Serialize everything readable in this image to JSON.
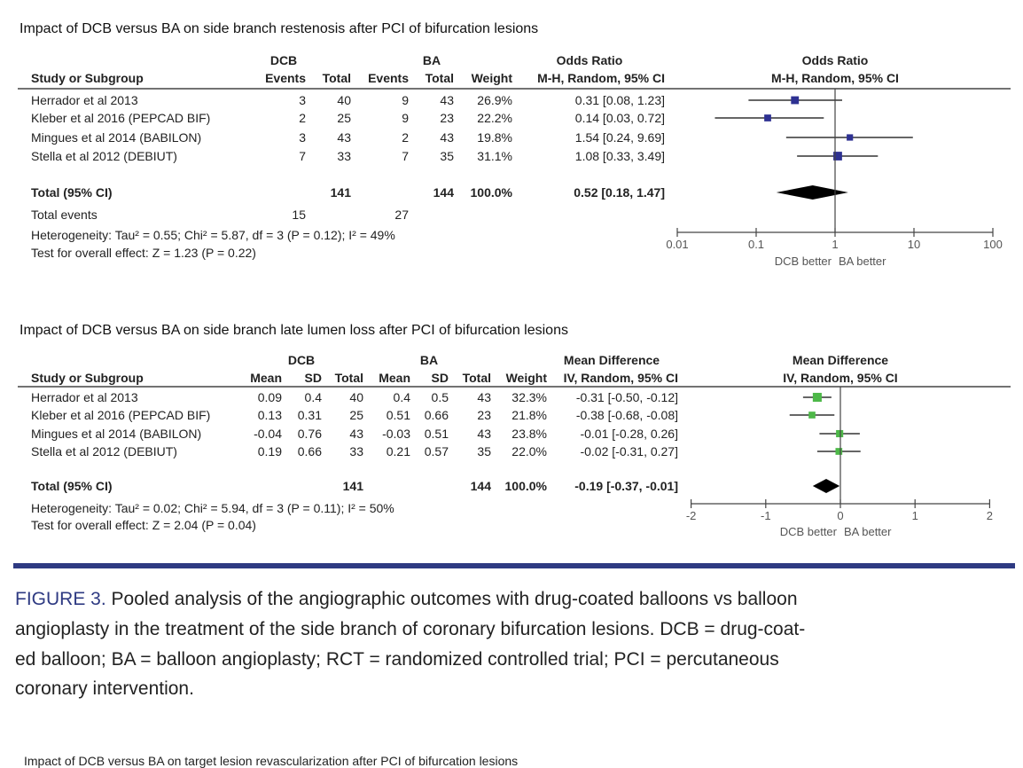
{
  "colors": {
    "accent": "#2e3a82",
    "square_or": "#2e3192",
    "square_md": "#4db848",
    "diamond": "#000000"
  },
  "chart_data": [
    {
      "type": "forest",
      "title": "Impact of DCB versus BA on side branch restenosis after PCI of bifurcation lesions",
      "group_headers": [
        "DCB",
        "BA",
        "Odds Ratio",
        "Odds Ratio"
      ],
      "columns": [
        "Study or Subgroup",
        "Events",
        "Total",
        "Events",
        "Total",
        "Weight",
        "M-H, Random, 95% CI",
        "M-H, Random, 95% CI"
      ],
      "studies": [
        {
          "name": "Herrador et al 2013",
          "cells": [
            "3",
            "40",
            "9",
            "43",
            "26.9%",
            "0.31 [0.08, 1.23]"
          ],
          "est": 0.31,
          "lo": 0.08,
          "hi": 1.23,
          "weight": 26.9
        },
        {
          "name": "Kleber et al 2016 (PEPCAD BIF)",
          "cells": [
            "2",
            "25",
            "9",
            "23",
            "22.2%",
            "0.14 [0.03, 0.72]"
          ],
          "est": 0.14,
          "lo": 0.03,
          "hi": 0.72,
          "weight": 22.2
        },
        {
          "name": "Mingues et al 2014 (BABILON)",
          "cells": [
            "3",
            "43",
            "2",
            "43",
            "19.8%",
            "1.54 [0.24, 9.69]"
          ],
          "est": 1.54,
          "lo": 0.24,
          "hi": 9.69,
          "weight": 19.8
        },
        {
          "name": "Stella et al 2012 (DEBIUT)",
          "cells": [
            "7",
            "33",
            "7",
            "35",
            "31.1%",
            "1.08 [0.33, 3.49]"
          ],
          "est": 1.08,
          "lo": 0.33,
          "hi": 3.49,
          "weight": 31.1
        }
      ],
      "total": {
        "name": "Total (95% CI)",
        "cells": [
          "",
          "141",
          "",
          "144",
          "100.0%",
          "0.52 [0.18, 1.47]"
        ],
        "est": 0.52,
        "lo": 0.18,
        "hi": 1.47
      },
      "total_events": {
        "name": "Total events",
        "dcb": "15",
        "ba": "27"
      },
      "heterogeneity": "Heterogeneity: Tau² = 0.55; Chi² = 5.87, df = 3 (P = 0.12); I² = 49%",
      "overall_effect": "Test for overall effect: Z = 1.23 (P = 0.22)",
      "scale": "log",
      "xlim": [
        0.01,
        100
      ],
      "ticks": [
        "0.01",
        "0.1",
        "1",
        "10",
        "100"
      ],
      "tick_values": [
        0.01,
        0.1,
        1,
        10,
        100
      ],
      "favours_left": "DCB better",
      "favours_right": "BA better"
    },
    {
      "type": "forest",
      "title": "Impact of DCB versus BA on side branch late lumen loss after PCI of bifurcation lesions",
      "group_headers": [
        "DCB",
        "BA",
        "Mean Difference",
        "Mean Difference"
      ],
      "columns": [
        "Study or Subgroup",
        "Mean",
        "SD",
        "Total",
        "Mean",
        "SD",
        "Total",
        "Weight",
        "IV, Random, 95% CI",
        "IV, Random, 95% CI"
      ],
      "studies": [
        {
          "name": "Herrador et al 2013",
          "cells": [
            "0.09",
            "0.4",
            "40",
            "0.4",
            "0.5",
            "43",
            "32.3%",
            "-0.31 [-0.50, -0.12]"
          ],
          "est": -0.31,
          "lo": -0.5,
          "hi": -0.12,
          "weight": 32.3
        },
        {
          "name": "Kleber et al 2016 (PEPCAD BIF)",
          "cells": [
            "0.13",
            "0.31",
            "25",
            "0.51",
            "0.66",
            "23",
            "21.8%",
            "-0.38 [-0.68, -0.08]"
          ],
          "est": -0.38,
          "lo": -0.68,
          "hi": -0.08,
          "weight": 21.8
        },
        {
          "name": "Mingues et al 2014 (BABILON)",
          "cells": [
            "-0.04",
            "0.76",
            "43",
            "-0.03",
            "0.51",
            "43",
            "23.8%",
            "-0.01 [-0.28, 0.26]"
          ],
          "est": -0.01,
          "lo": -0.28,
          "hi": 0.26,
          "weight": 23.8
        },
        {
          "name": "Stella et al 2012 (DEBIUT)",
          "cells": [
            "0.19",
            "0.66",
            "33",
            "0.21",
            "0.57",
            "35",
            "22.0%",
            "-0.02 [-0.31, 0.27]"
          ],
          "est": -0.02,
          "lo": -0.31,
          "hi": 0.27,
          "weight": 22.0
        }
      ],
      "total": {
        "name": "Total (95% CI)",
        "cells": [
          "",
          "",
          "141",
          "",
          "",
          "144",
          "100.0%",
          "-0.19 [-0.37, -0.01]"
        ],
        "est": -0.19,
        "lo": -0.37,
        "hi": -0.01
      },
      "heterogeneity": "Heterogeneity: Tau² = 0.02; Chi² = 5.94, df = 3 (P = 0.11); I² = 50%",
      "overall_effect": "Test for overall effect: Z = 2.04 (P = 0.04)",
      "scale": "linear",
      "xlim": [
        -2,
        2
      ],
      "ticks": [
        "-2",
        "-1",
        "0",
        "1",
        "2"
      ],
      "tick_values": [
        -2,
        -1,
        0,
        1,
        2
      ],
      "favours_left": "DCB better",
      "favours_right": "BA better"
    }
  ],
  "caption": {
    "label": "FIGURE 3.",
    "lines": [
      " Pooled analysis of the angiographic outcomes with drug-coated balloons vs balloon",
      "angioplasty in the treatment of the side branch of coronary bifurcation lesions. DCB = drug-coat-",
      "ed balloon; BA = balloon angioplasty; RCT = randomized controlled trial; PCI = percutaneous",
      "coronary intervention."
    ]
  },
  "next_figure_title": "Impact of DCB versus BA on target lesion revascularization after PCI of bifurcation lesions"
}
